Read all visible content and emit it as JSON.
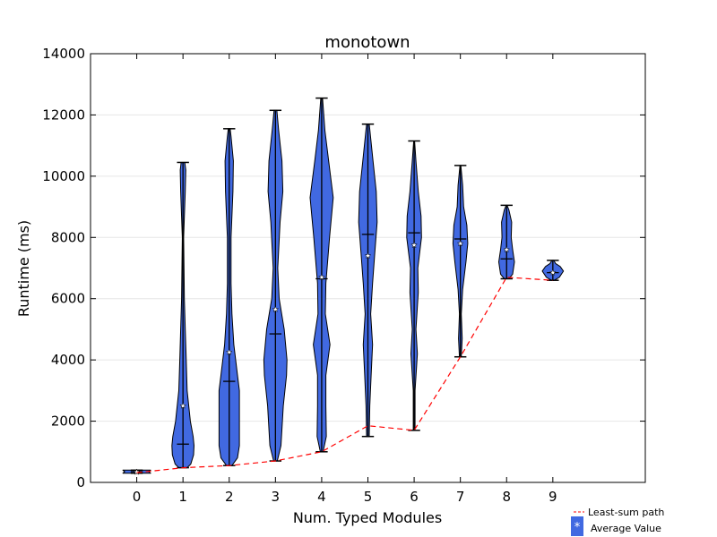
{
  "chart_data": {
    "type": "violin",
    "title": "monotown",
    "xlabel": "Num. Typed Modules",
    "ylabel": "Runtime (ms)",
    "categories": [
      "0",
      "1",
      "2",
      "3",
      "4",
      "5",
      "6",
      "7",
      "8",
      "9"
    ],
    "x_values": [
      0,
      1,
      2,
      3,
      4,
      5,
      6,
      7,
      8,
      9
    ],
    "xlim": [
      -1,
      11
    ],
    "ylim": [
      0,
      14000
    ],
    "yticks": [
      0,
      2000,
      4000,
      6000,
      8000,
      10000,
      12000,
      14000
    ],
    "ytick_labels": [
      "0",
      "2000",
      "4000",
      "6000",
      "8000",
      "10000",
      "12000",
      "14000"
    ],
    "grid": "horizontal",
    "violin_color": "#4169e1",
    "path_color": "#ff0000",
    "violins": [
      {
        "x": 0,
        "min": 300,
        "max": 400,
        "median": 350,
        "mean": 340,
        "profile": [
          [
            300,
            0.3
          ],
          [
            350,
            0.26
          ],
          [
            400,
            0.3
          ]
        ]
      },
      {
        "x": 1,
        "min": 480,
        "max": 10450,
        "median": 1250,
        "mean": 2500,
        "profile": [
          [
            480,
            0.09
          ],
          [
            600,
            0.17
          ],
          [
            900,
            0.23
          ],
          [
            1200,
            0.24
          ],
          [
            1500,
            0.22
          ],
          [
            2000,
            0.16
          ],
          [
            3000,
            0.09
          ],
          [
            4000,
            0.07
          ],
          [
            5000,
            0.05
          ],
          [
            6000,
            0.03
          ],
          [
            8000,
            0.015
          ],
          [
            9500,
            0.05
          ],
          [
            10200,
            0.06
          ],
          [
            10450,
            0.04
          ]
        ]
      },
      {
        "x": 2,
        "min": 550,
        "max": 11550,
        "median": 3300,
        "mean": 4250,
        "profile": [
          [
            550,
            0.06
          ],
          [
            800,
            0.18
          ],
          [
            1200,
            0.22
          ],
          [
            2000,
            0.22
          ],
          [
            3000,
            0.22
          ],
          [
            3500,
            0.18
          ],
          [
            4500,
            0.1
          ],
          [
            5500,
            0.06
          ],
          [
            6500,
            0.04
          ],
          [
            8000,
            0.04
          ],
          [
            9500,
            0.08
          ],
          [
            10500,
            0.09
          ],
          [
            11300,
            0.04
          ],
          [
            11550,
            0.02
          ]
        ]
      },
      {
        "x": 3,
        "min": 700,
        "max": 12150,
        "median": 4850,
        "mean": 5650,
        "profile": [
          [
            700,
            0.04
          ],
          [
            1200,
            0.12
          ],
          [
            2500,
            0.17
          ],
          [
            3500,
            0.24
          ],
          [
            4000,
            0.25
          ],
          [
            5000,
            0.19
          ],
          [
            6000,
            0.08
          ],
          [
            7000,
            0.05
          ],
          [
            8500,
            0.1
          ],
          [
            9500,
            0.16
          ],
          [
            10500,
            0.14
          ],
          [
            11500,
            0.07
          ],
          [
            12150,
            0.03
          ]
        ]
      },
      {
        "x": 4,
        "min": 1000,
        "max": 12550,
        "median": 6650,
        "mean": 6700,
        "profile": [
          [
            1000,
            0.03
          ],
          [
            1500,
            0.1
          ],
          [
            2500,
            0.09
          ],
          [
            3500,
            0.09
          ],
          [
            4500,
            0.18
          ],
          [
            5500,
            0.08
          ],
          [
            6500,
            0.09
          ],
          [
            8000,
            0.17
          ],
          [
            9300,
            0.25
          ],
          [
            10500,
            0.15
          ],
          [
            11500,
            0.07
          ],
          [
            12550,
            0.02
          ]
        ]
      },
      {
        "x": 5,
        "min": 1500,
        "max": 11700,
        "median": 8100,
        "mean": 7400,
        "profile": [
          [
            1500,
            0.03
          ],
          [
            2500,
            0.04
          ],
          [
            3500,
            0.07
          ],
          [
            4500,
            0.1
          ],
          [
            5500,
            0.06
          ],
          [
            6500,
            0.1
          ],
          [
            7500,
            0.15
          ],
          [
            8500,
            0.2
          ],
          [
            9500,
            0.18
          ],
          [
            10500,
            0.11
          ],
          [
            11700,
            0.03
          ]
        ]
      },
      {
        "x": 6,
        "min": 1700,
        "max": 11150,
        "median": 8150,
        "mean": 7750,
        "profile": [
          [
            1700,
            0.02
          ],
          [
            3000,
            0.02
          ],
          [
            4200,
            0.07
          ],
          [
            5000,
            0.04
          ],
          [
            6200,
            0.09
          ],
          [
            7000,
            0.08
          ],
          [
            8000,
            0.16
          ],
          [
            8700,
            0.15
          ],
          [
            9500,
            0.09
          ],
          [
            10500,
            0.04
          ],
          [
            11150,
            0.01
          ]
        ]
      },
      {
        "x": 7,
        "min": 4100,
        "max": 10350,
        "median": 7950,
        "mean": 7800,
        "profile": [
          [
            4100,
            0.02
          ],
          [
            4700,
            0.04
          ],
          [
            5500,
            0.02
          ],
          [
            6300,
            0.05
          ],
          [
            7200,
            0.12
          ],
          [
            7800,
            0.16
          ],
          [
            8400,
            0.14
          ],
          [
            9000,
            0.07
          ],
          [
            9700,
            0.05
          ],
          [
            10350,
            0.01
          ]
        ]
      },
      {
        "x": 8,
        "min": 6650,
        "max": 9050,
        "median": 7300,
        "mean": 7600,
        "profile": [
          [
            6650,
            0.05
          ],
          [
            6800,
            0.13
          ],
          [
            7200,
            0.17
          ],
          [
            7600,
            0.13
          ],
          [
            8000,
            0.1
          ],
          [
            8500,
            0.11
          ],
          [
            8900,
            0.05
          ],
          [
            9050,
            0.01
          ]
        ]
      },
      {
        "x": 9,
        "min": 6600,
        "max": 7250,
        "median": 6850,
        "mean": 6850,
        "profile": [
          [
            6600,
            0.03
          ],
          [
            6700,
            0.14
          ],
          [
            6900,
            0.23
          ],
          [
            7050,
            0.16
          ],
          [
            7150,
            0.06
          ],
          [
            7250,
            0.02
          ]
        ]
      }
    ],
    "least_sum_path": {
      "x": [
        0,
        1,
        2,
        3,
        4,
        5,
        6,
        7,
        8,
        9
      ],
      "y": [
        320,
        480,
        550,
        700,
        1000,
        1850,
        1700,
        4100,
        6700,
        6600
      ]
    },
    "legend": {
      "position": "lower-right",
      "entries": [
        {
          "label": "Least-sum path",
          "symbol": "dashed-line"
        },
        {
          "label": "Average Value",
          "symbol": "star-patch"
        }
      ]
    }
  }
}
